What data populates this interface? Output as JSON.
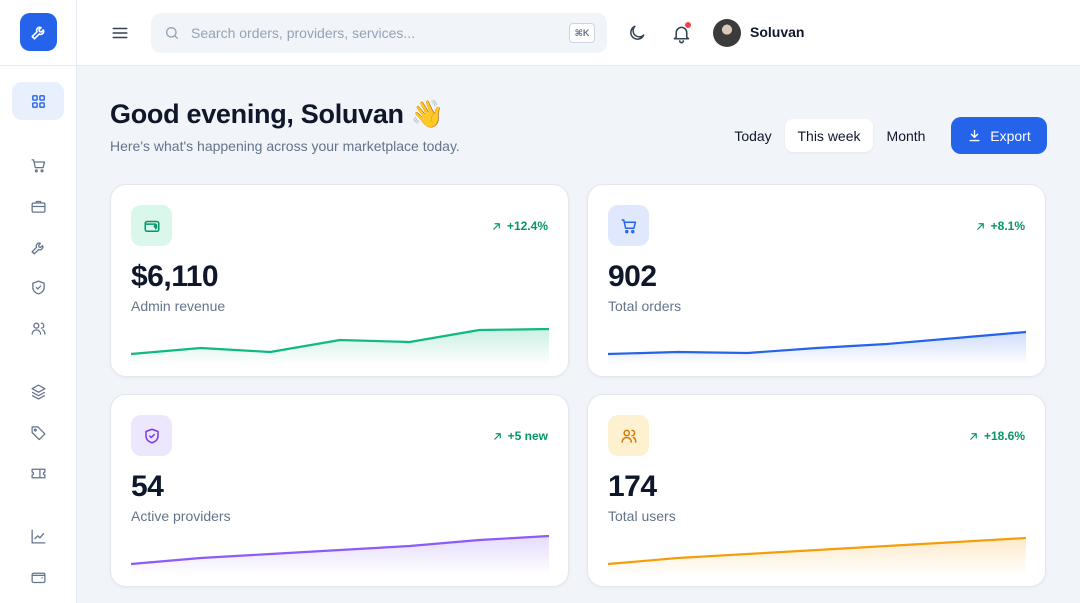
{
  "header": {
    "search_placeholder": "Search orders, providers, services...",
    "search_shortcut": "⌘K",
    "user_name": "Soluvan",
    "notification_dot_color": "#ef4444"
  },
  "sidebar": {
    "items": [
      {
        "name": "dashboard",
        "icon": "grid-icon",
        "active": true
      },
      {
        "name": "orders",
        "icon": "cart-icon"
      },
      {
        "name": "services",
        "icon": "briefcase-icon"
      },
      {
        "name": "tools",
        "icon": "wrench-icon"
      },
      {
        "name": "providers",
        "icon": "shield-icon"
      },
      {
        "name": "users",
        "icon": "users-icon"
      },
      {
        "name": "categories",
        "icon": "layers-icon"
      },
      {
        "name": "tags",
        "icon": "tag-icon"
      },
      {
        "name": "tickets",
        "icon": "ticket-icon"
      },
      {
        "name": "analytics",
        "icon": "chart-line-icon"
      },
      {
        "name": "wallet",
        "icon": "wallet-icon"
      }
    ]
  },
  "main": {
    "greeting": "Good evening, Soluvan 👋",
    "subtitle": "Here's what's happening across your marketplace today.",
    "ranges": [
      "Today",
      "This week",
      "Month"
    ],
    "active_range": "This week",
    "export_label": "Export"
  },
  "cards": [
    {
      "value": "$6,110",
      "label": "Admin revenue",
      "trend": "+12.4%",
      "icon": "wallet-icon",
      "color": "#10b981",
      "icon_bg": "#d9f7ea",
      "spark": [
        3,
        6,
        4,
        10,
        9,
        15,
        15.5
      ]
    },
    {
      "value": "902",
      "label": "Total orders",
      "trend": "+8.1%",
      "icon": "cart-icon",
      "color": "#2563eb",
      "icon_bg": "#dfe8fc",
      "spark": [
        3,
        4,
        3.5,
        6,
        8,
        11,
        14
      ]
    },
    {
      "value": "54",
      "label": "Active providers",
      "trend": "+5 new",
      "icon": "shield-icon",
      "color": "#8b5cf6",
      "icon_bg": "#ede7fd",
      "spark": [
        3,
        6,
        8,
        10,
        12,
        15,
        17
      ]
    },
    {
      "value": "174",
      "label": "Total users",
      "trend": "+18.6%",
      "icon": "users-icon",
      "color": "#f59e0b",
      "icon_bg": "#fdf1cf",
      "spark": [
        3,
        6,
        8,
        10,
        12,
        14,
        16
      ]
    }
  ],
  "colors": {
    "accent": "#2563eb",
    "trend_positive": "#059669"
  }
}
